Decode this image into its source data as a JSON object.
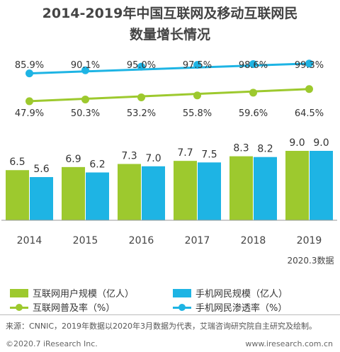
{
  "title_line1": "2014-2019年中国互联网及移动互联网民",
  "title_line2": "数量增长情况",
  "chart_data": {
    "type": "bar",
    "categories": [
      "2014",
      "2015",
      "2016",
      "2017",
      "2018",
      "2019"
    ],
    "category_note": "2020.3数据",
    "series": [
      {
        "name": "互联网用户规模（亿人）",
        "kind": "bar",
        "color": "#9dc92e",
        "values": [
          6.5,
          6.9,
          7.3,
          7.7,
          8.3,
          9.0
        ]
      },
      {
        "name": "手机网民规模（亿人）",
        "kind": "bar",
        "color": "#1eb4e4",
        "values": [
          5.6,
          6.2,
          7.0,
          7.5,
          8.2,
          9.0
        ]
      },
      {
        "name": "互联网普及率（%）",
        "kind": "line",
        "color": "#9dc92e",
        "values": [
          47.9,
          50.3,
          53.2,
          55.8,
          59.6,
          64.5
        ],
        "labels": [
          "47.9%",
          "50.3%",
          "53.2%",
          "55.8%",
          "59.6%",
          "64.5%"
        ]
      },
      {
        "name": "手机网民渗透率（%）",
        "kind": "line",
        "color": "#1eb4e4",
        "values": [
          85.9,
          90.1,
          95.0,
          97.5,
          98.6,
          99.3
        ],
        "labels": [
          "85.9%",
          "90.1%",
          "95.0%",
          "97.5%",
          "98.6%",
          "99.3%"
        ]
      }
    ]
  },
  "footer": {
    "source": "来源：CNNIC，2019年数据以2020年3月数据为代表，艾瑞咨询研究院自主研究及绘制。",
    "copyright": "©2020.7 iResearch Inc.",
    "website": "www.iresearch.com.cn"
  }
}
